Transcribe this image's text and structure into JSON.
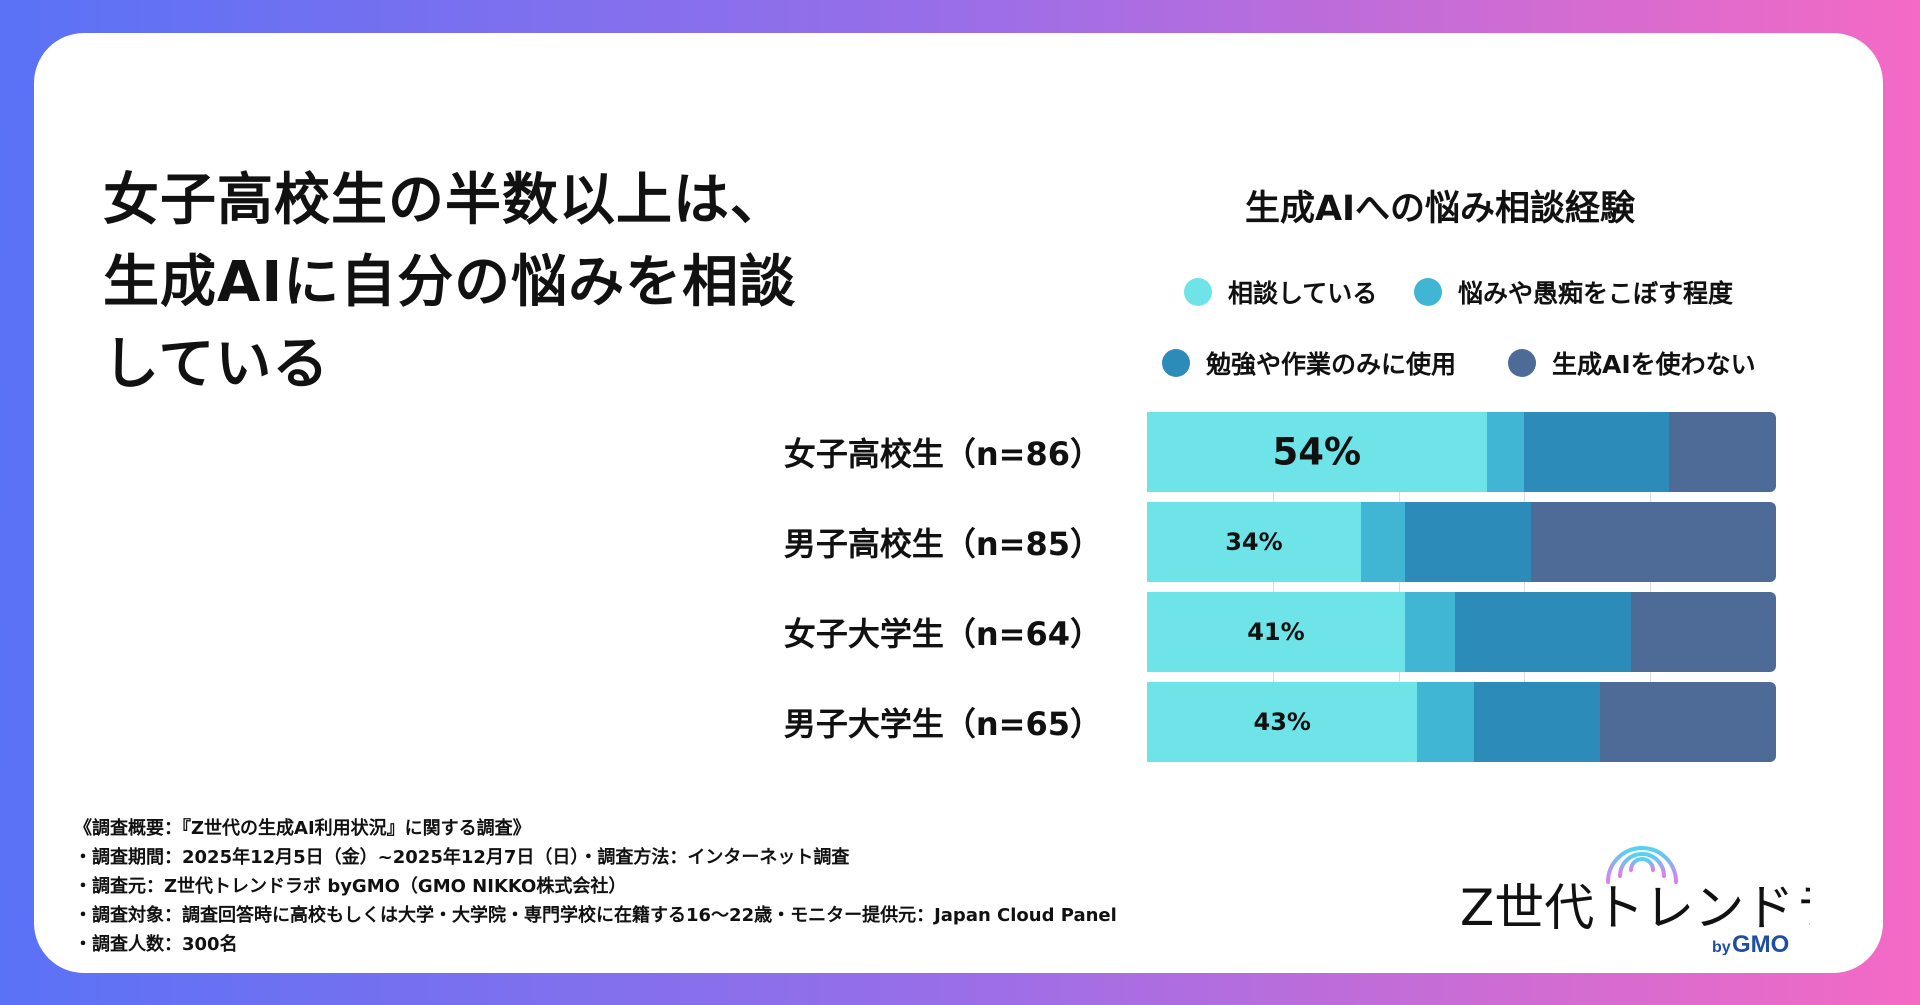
{
  "headline": [
    "女子高校生の半数以上は、",
    "生成AIに自分の悩みを相談",
    "している"
  ],
  "chart_data": {
    "type": "bar",
    "orientation": "horizontal",
    "stacked": true,
    "title": "生成AIへの悩み相談経験",
    "categories": [
      "女子高校生（n=86）",
      "男子高校生（n=85）",
      "女子大学生（n=64）",
      "男子大学生（n=65）"
    ],
    "series": [
      {
        "name": "相談している",
        "color": "#6ee4e8",
        "values": [
          54,
          34,
          41,
          43
        ]
      },
      {
        "name": "悩みや愚痴をこぼす程度",
        "color": "#40b6d4",
        "values": [
          6,
          7,
          8,
          9
        ]
      },
      {
        "name": "勉強や作業のみに使用",
        "color": "#2d8bba",
        "values": [
          23,
          20,
          28,
          20
        ]
      },
      {
        "name": "生成AIを使わない",
        "color": "#4e6b98",
        "values": [
          17,
          39,
          23,
          28
        ]
      }
    ],
    "data_labels": [
      "54%",
      "34%",
      "41%",
      "43%"
    ],
    "xlim": [
      0,
      100
    ],
    "grid": true,
    "legend": "top"
  },
  "footer": [
    "《調査概要：『Z世代の生成AI利用状況』に関する調査》",
    "・調査期間：2025年12月5日（金）~2025年12月7日（日）・調査方法：インターネット調査",
    "・調査元：Z世代トレンドラボ byGMO（GMO NIKKO株式会社）",
    "・調査対象：調査回答時に高校もしくは大学・大学院・専門学校に在籍する16〜22歳・モニター提供元：Japan Cloud Panel",
    "・調査人数：300名"
  ],
  "logo": {
    "text": "Z世代トレンドラボ",
    "by": "by",
    "brand": "GMO"
  }
}
